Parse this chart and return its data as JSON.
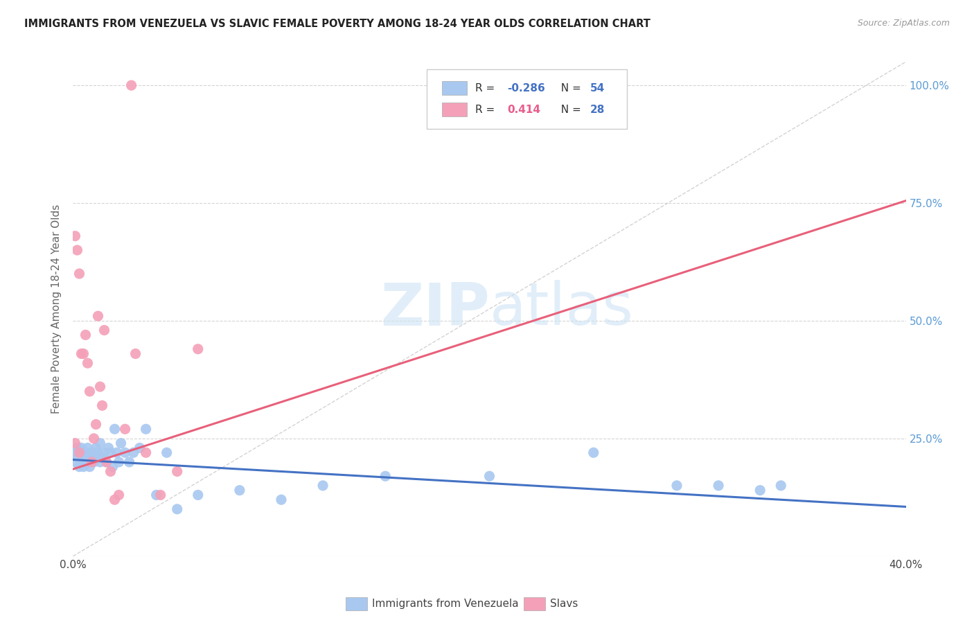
{
  "title": "IMMIGRANTS FROM VENEZUELA VS SLAVIC FEMALE POVERTY AMONG 18-24 YEAR OLDS CORRELATION CHART",
  "source": "Source: ZipAtlas.com",
  "ylabel": "Female Poverty Among 18-24 Year Olds",
  "xlim": [
    0.0,
    0.4
  ],
  "ylim": [
    0.0,
    1.05
  ],
  "yticks": [
    0.0,
    0.25,
    0.5,
    0.75,
    1.0
  ],
  "ytick_labels": [
    "",
    "25.0%",
    "50.0%",
    "75.0%",
    "100.0%"
  ],
  "right_yaxis_color": "#5b9bd5",
  "watermark_zip": "ZIP",
  "watermark_atlas": "atlas",
  "legend_R1": "-0.286",
  "legend_N1": "54",
  "legend_R2": "0.414",
  "legend_N2": "28",
  "blue_color": "#a8c8f0",
  "pink_color": "#f4a0b8",
  "blue_line_color": "#4472c4",
  "pink_line_color": "#e8607a",
  "diag_line_color": "#c8c8c8",
  "venezuela_x": [
    0.001,
    0.001,
    0.002,
    0.002,
    0.003,
    0.003,
    0.004,
    0.004,
    0.005,
    0.005,
    0.006,
    0.006,
    0.007,
    0.007,
    0.008,
    0.008,
    0.009,
    0.009,
    0.01,
    0.01,
    0.011,
    0.011,
    0.012,
    0.013,
    0.013,
    0.014,
    0.015,
    0.016,
    0.017,
    0.018,
    0.019,
    0.02,
    0.021,
    0.022,
    0.023,
    0.025,
    0.027,
    0.029,
    0.032,
    0.035,
    0.04,
    0.045,
    0.05,
    0.06,
    0.08,
    0.1,
    0.12,
    0.15,
    0.2,
    0.25,
    0.29,
    0.31,
    0.33,
    0.34
  ],
  "venezuela_y": [
    0.22,
    0.2,
    0.21,
    0.23,
    0.19,
    0.22,
    0.2,
    0.23,
    0.21,
    0.19,
    0.22,
    0.2,
    0.21,
    0.23,
    0.2,
    0.19,
    0.22,
    0.21,
    0.2,
    0.22,
    0.21,
    0.23,
    0.22,
    0.2,
    0.24,
    0.21,
    0.22,
    0.2,
    0.23,
    0.22,
    0.19,
    0.27,
    0.22,
    0.2,
    0.24,
    0.22,
    0.2,
    0.22,
    0.23,
    0.27,
    0.13,
    0.22,
    0.1,
    0.13,
    0.14,
    0.12,
    0.15,
    0.17,
    0.17,
    0.22,
    0.15,
    0.15,
    0.14,
    0.15
  ],
  "slavs_x": [
    0.001,
    0.001,
    0.002,
    0.003,
    0.003,
    0.004,
    0.005,
    0.006,
    0.007,
    0.008,
    0.009,
    0.01,
    0.011,
    0.012,
    0.013,
    0.014,
    0.015,
    0.016,
    0.018,
    0.02,
    0.022,
    0.025,
    0.028,
    0.03,
    0.035,
    0.042,
    0.05,
    0.06
  ],
  "slavs_y": [
    0.24,
    0.68,
    0.65,
    0.22,
    0.6,
    0.43,
    0.43,
    0.47,
    0.41,
    0.35,
    0.2,
    0.25,
    0.28,
    0.51,
    0.36,
    0.32,
    0.48,
    0.2,
    0.18,
    0.12,
    0.13,
    0.27,
    1.0,
    0.43,
    0.22,
    0.13,
    0.18,
    0.44
  ],
  "blue_trend_x": [
    0.0,
    0.4
  ],
  "blue_trend_y": [
    0.205,
    0.105
  ],
  "pink_trend_x": [
    0.0,
    0.4
  ],
  "pink_trend_y": [
    0.185,
    0.755
  ]
}
